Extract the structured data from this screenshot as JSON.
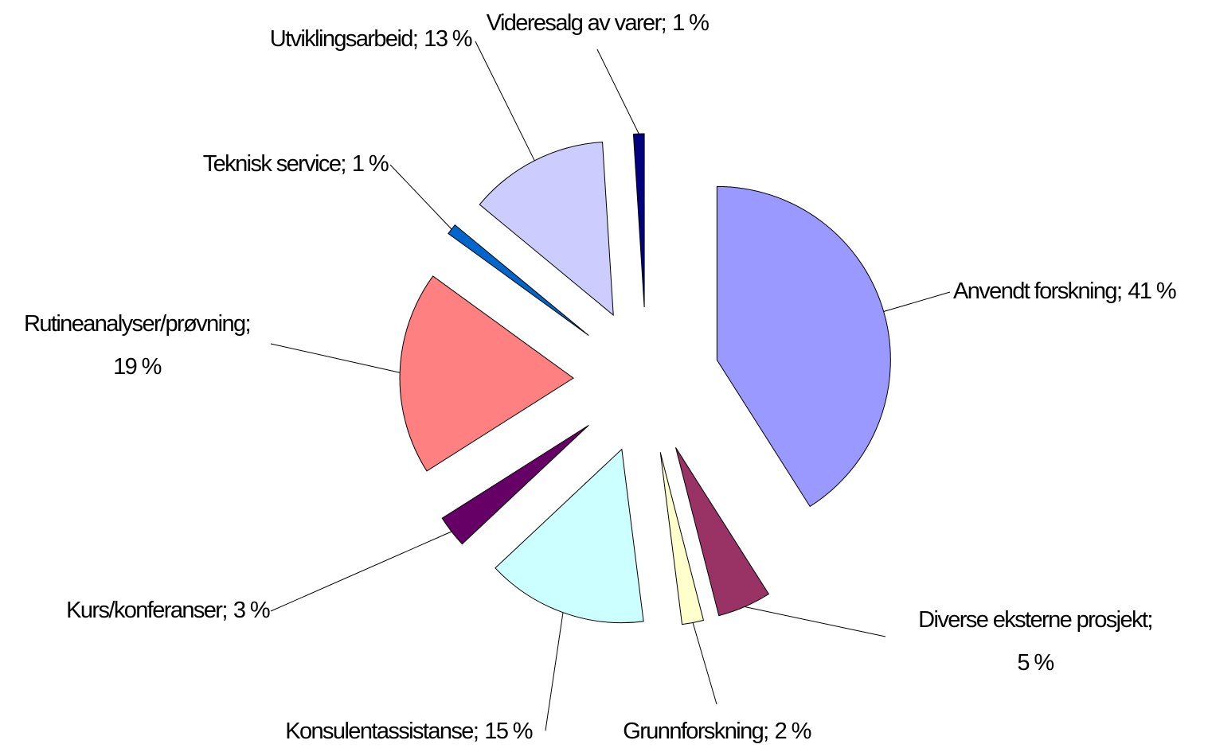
{
  "chart_data": {
    "type": "pie",
    "categories": [
      "Anvendt forskning;",
      "Diverse eksterne prosjekt;",
      "Grunnforskning;",
      "Konsulentassistanse;",
      "Kurs/konferanser;",
      "Rutineanalyser/prøvning;",
      "Teknisk service;",
      "Utviklingsarbeid;",
      "Videresalg av varer;"
    ],
    "values": [
      41,
      5,
      2,
      15,
      3,
      19,
      1,
      13,
      1
    ],
    "value_labels": [
      "41 %",
      "5 %",
      "2 %",
      "15 %",
      "3 %",
      "19 %",
      "1 %",
      "13 %",
      "1 %"
    ],
    "colors": [
      "#9999ff",
      "#993366",
      "#ffffcc",
      "#ccffff",
      "#660066",
      "#ff8080",
      "#0066cc",
      "#ccccff",
      "#000080"
    ]
  }
}
